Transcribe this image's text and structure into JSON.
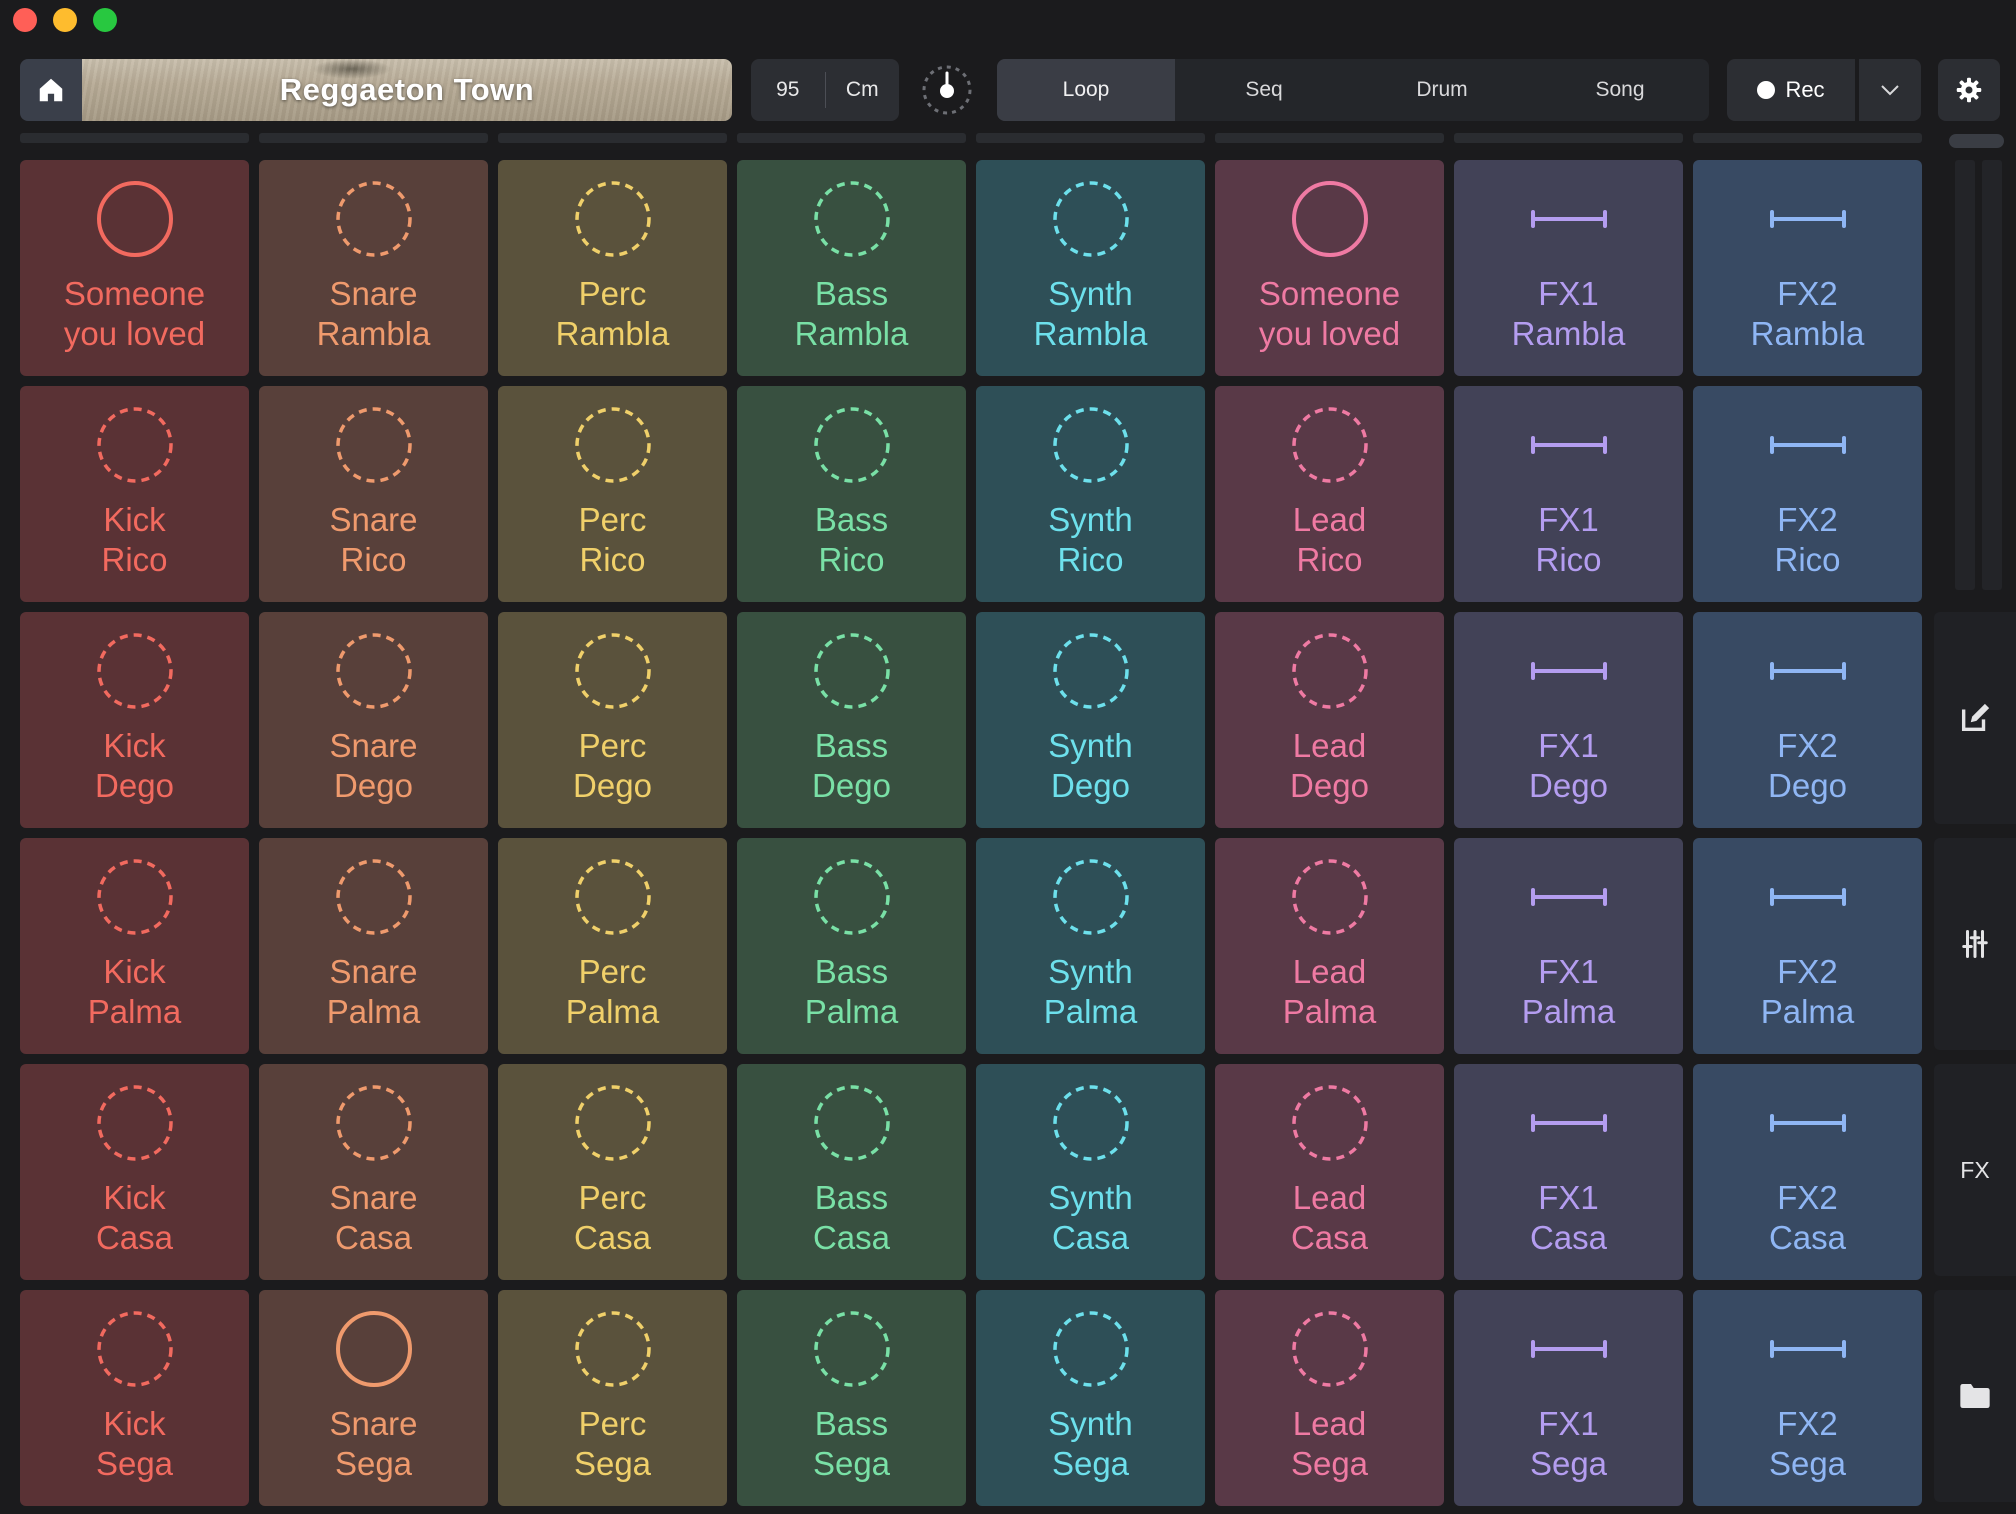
{
  "window": {
    "controls": [
      "close",
      "minimize",
      "maximize"
    ]
  },
  "toolbar": {
    "home_icon": "home-icon",
    "project_title": "Reggaeton Town",
    "tempo": "95",
    "key": "Cm",
    "metronome_icon": "metronome-icon",
    "modes": [
      {
        "label": "Loop",
        "active": true
      },
      {
        "label": "Seq",
        "active": false
      },
      {
        "label": "Drum",
        "active": false
      },
      {
        "label": "Song",
        "active": false
      }
    ],
    "rec_label": "Rec",
    "rec_menu_icon": "chevron-down-icon",
    "settings_icon": "gear-icon"
  },
  "columns": [
    {
      "color": "#f26a5f",
      "theme": "red"
    },
    {
      "color": "#ef9a6d",
      "theme": "orange"
    },
    {
      "color": "#f0d06a",
      "theme": "olive"
    },
    {
      "color": "#79e0a6",
      "theme": "green"
    },
    {
      "color": "#6de0ec",
      "theme": "teal"
    },
    {
      "color": "#ef7aa3",
      "theme": "pink"
    },
    {
      "color": "#b49df0",
      "theme": "purple"
    },
    {
      "color": "#8fb6f4",
      "theme": "blue"
    }
  ],
  "grid": [
    [
      {
        "line1": "Someone",
        "line2": "you loved",
        "icon": "solid-circle-icon"
      },
      {
        "line1": "Snare",
        "line2": "Rambla",
        "icon": "dashed-circle-icon"
      },
      {
        "line1": "Perc",
        "line2": "Rambla",
        "icon": "dashed-circle-icon"
      },
      {
        "line1": "Bass",
        "line2": "Rambla",
        "icon": "dashed-circle-icon"
      },
      {
        "line1": "Synth",
        "line2": "Rambla",
        "icon": "dashed-circle-icon"
      },
      {
        "line1": "Someone",
        "line2": "you loved",
        "icon": "solid-circle-icon"
      },
      {
        "line1": "FX1",
        "line2": "Rambla",
        "icon": "one-shot-bar-icon"
      },
      {
        "line1": "FX2",
        "line2": "Rambla",
        "icon": "one-shot-bar-icon"
      }
    ],
    [
      {
        "line1": "Kick",
        "line2": "Rico",
        "icon": "dashed-circle-icon"
      },
      {
        "line1": "Snare",
        "line2": "Rico",
        "icon": "dashed-circle-icon"
      },
      {
        "line1": "Perc",
        "line2": "Rico",
        "icon": "dashed-circle-icon"
      },
      {
        "line1": "Bass",
        "line2": "Rico",
        "icon": "dashed-circle-icon"
      },
      {
        "line1": "Synth",
        "line2": "Rico",
        "icon": "dashed-circle-icon"
      },
      {
        "line1": "Lead",
        "line2": "Rico",
        "icon": "dashed-circle-icon"
      },
      {
        "line1": "FX1",
        "line2": "Rico",
        "icon": "one-shot-bar-icon"
      },
      {
        "line1": "FX2",
        "line2": "Rico",
        "icon": "one-shot-bar-icon"
      }
    ],
    [
      {
        "line1": "Kick",
        "line2": "Dego",
        "icon": "dashed-circle-icon"
      },
      {
        "line1": "Snare",
        "line2": "Dego",
        "icon": "dashed-circle-icon"
      },
      {
        "line1": "Perc",
        "line2": "Dego",
        "icon": "dashed-circle-icon"
      },
      {
        "line1": "Bass",
        "line2": "Dego",
        "icon": "dashed-circle-icon"
      },
      {
        "line1": "Synth",
        "line2": "Dego",
        "icon": "dashed-circle-icon"
      },
      {
        "line1": "Lead",
        "line2": "Dego",
        "icon": "dashed-circle-icon"
      },
      {
        "line1": "FX1",
        "line2": "Dego",
        "icon": "one-shot-bar-icon"
      },
      {
        "line1": "FX2",
        "line2": "Dego",
        "icon": "one-shot-bar-icon"
      }
    ],
    [
      {
        "line1": "Kick",
        "line2": "Palma",
        "icon": "dashed-circle-icon"
      },
      {
        "line1": "Snare",
        "line2": "Palma",
        "icon": "dashed-circle-icon"
      },
      {
        "line1": "Perc",
        "line2": "Palma",
        "icon": "dashed-circle-icon"
      },
      {
        "line1": "Bass",
        "line2": "Palma",
        "icon": "dashed-circle-icon"
      },
      {
        "line1": "Synth",
        "line2": "Palma",
        "icon": "dashed-circle-icon"
      },
      {
        "line1": "Lead",
        "line2": "Palma",
        "icon": "dashed-circle-icon"
      },
      {
        "line1": "FX1",
        "line2": "Palma",
        "icon": "one-shot-bar-icon"
      },
      {
        "line1": "FX2",
        "line2": "Palma",
        "icon": "one-shot-bar-icon"
      }
    ],
    [
      {
        "line1": "Kick",
        "line2": "Casa",
        "icon": "dashed-circle-icon"
      },
      {
        "line1": "Snare",
        "line2": "Casa",
        "icon": "dashed-circle-icon"
      },
      {
        "line1": "Perc",
        "line2": "Casa",
        "icon": "dashed-circle-icon"
      },
      {
        "line1": "Bass",
        "line2": "Casa",
        "icon": "dashed-circle-icon"
      },
      {
        "line1": "Synth",
        "line2": "Casa",
        "icon": "dashed-circle-icon"
      },
      {
        "line1": "Lead",
        "line2": "Casa",
        "icon": "dashed-circle-icon"
      },
      {
        "line1": "FX1",
        "line2": "Casa",
        "icon": "one-shot-bar-icon"
      },
      {
        "line1": "FX2",
        "line2": "Casa",
        "icon": "one-shot-bar-icon"
      }
    ],
    [
      {
        "line1": "Kick",
        "line2": "Sega",
        "icon": "dashed-circle-icon"
      },
      {
        "line1": "Snare",
        "line2": "Sega",
        "icon": "solid-circle-icon"
      },
      {
        "line1": "Perc",
        "line2": "Sega",
        "icon": "dashed-circle-icon"
      },
      {
        "line1": "Bass",
        "line2": "Sega",
        "icon": "dashed-circle-icon"
      },
      {
        "line1": "Synth",
        "line2": "Sega",
        "icon": "dashed-circle-icon"
      },
      {
        "line1": "Lead",
        "line2": "Sega",
        "icon": "dashed-circle-icon"
      },
      {
        "line1": "FX1",
        "line2": "Sega",
        "icon": "one-shot-bar-icon"
      },
      {
        "line1": "FX2",
        "line2": "Sega",
        "icon": "one-shot-bar-icon"
      }
    ]
  ],
  "side_panel": {
    "tabs": [
      {
        "icon": "edit-icon"
      },
      {
        "icon": "mixer-sliders-icon"
      },
      {
        "label": "FX"
      },
      {
        "icon": "folder-icon"
      }
    ]
  }
}
